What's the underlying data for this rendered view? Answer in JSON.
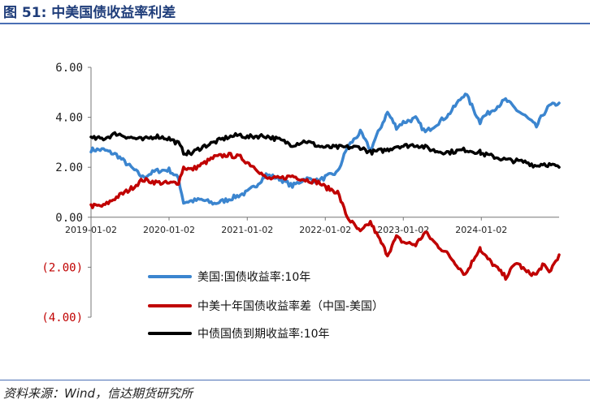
{
  "header": {
    "title": "图 51:  中美国债收益率利差"
  },
  "source": "资料来源：Wind，信达期货研究所",
  "chart_data": {
    "type": "line",
    "title": "中美国债收益率利差",
    "xlabel": "",
    "ylabel": "",
    "x_range": [
      "2019-01-02",
      "2024-12-31"
    ],
    "ylim": [
      -4,
      6
    ],
    "y_ticks": [
      6,
      4,
      2,
      0,
      -2,
      -4
    ],
    "y_tick_labels": [
      "6.00",
      "4.00",
      "2.00",
      "0.00",
      "(2.00)",
      "(4.00)"
    ],
    "x_ticks": [
      "2019-01-02",
      "2020-01-02",
      "2021-01-02",
      "2022-01-02",
      "2023-01-02",
      "2024-01-02"
    ],
    "grid": false,
    "legend_position": "bottom-center",
    "series": [
      {
        "name": "美国:国债收益率:10年",
        "color": "#3b85cf",
        "points": [
          [
            "2019-01-02",
            2.7
          ],
          [
            "2019-03-01",
            2.7
          ],
          [
            "2019-05-01",
            2.5
          ],
          [
            "2019-07-01",
            2.05
          ],
          [
            "2019-09-01",
            1.6
          ],
          [
            "2019-11-01",
            1.85
          ],
          [
            "2020-01-02",
            1.9
          ],
          [
            "2020-02-15",
            1.55
          ],
          [
            "2020-03-10",
            0.6
          ],
          [
            "2020-04-15",
            0.65
          ],
          [
            "2020-06-01",
            0.7
          ],
          [
            "2020-08-01",
            0.55
          ],
          [
            "2020-10-01",
            0.7
          ],
          [
            "2020-12-01",
            0.9
          ],
          [
            "2021-01-02",
            1.0
          ],
          [
            "2021-02-15",
            1.3
          ],
          [
            "2021-03-31",
            1.7
          ],
          [
            "2021-06-01",
            1.55
          ],
          [
            "2021-08-01",
            1.25
          ],
          [
            "2021-10-01",
            1.55
          ],
          [
            "2021-12-01",
            1.45
          ],
          [
            "2022-01-02",
            1.6
          ],
          [
            "2022-03-01",
            1.8
          ],
          [
            "2022-04-15",
            2.8
          ],
          [
            "2022-06-15",
            3.4
          ],
          [
            "2022-08-01",
            2.7
          ],
          [
            "2022-10-20",
            4.2
          ],
          [
            "2022-12-01",
            3.6
          ],
          [
            "2023-01-02",
            3.8
          ],
          [
            "2023-03-01",
            3.95
          ],
          [
            "2023-04-15",
            3.4
          ],
          [
            "2023-06-01",
            3.7
          ],
          [
            "2023-08-01",
            4.1
          ],
          [
            "2023-10-19",
            4.98
          ],
          [
            "2023-12-27",
            3.8
          ],
          [
            "2024-01-02",
            3.95
          ],
          [
            "2024-04-25",
            4.7
          ],
          [
            "2024-06-15",
            4.3
          ],
          [
            "2024-08-01",
            4.0
          ],
          [
            "2024-09-16",
            3.62
          ],
          [
            "2024-10-15",
            4.1
          ],
          [
            "2024-11-15",
            4.45
          ],
          [
            "2024-12-31",
            4.57
          ]
        ]
      },
      {
        "name": "中美十年国债收益率差（中国-美国）",
        "color": "#c00000",
        "points": [
          [
            "2019-01-02",
            0.45
          ],
          [
            "2019-03-01",
            0.45
          ],
          [
            "2019-05-01",
            0.8
          ],
          [
            "2019-07-01",
            1.1
          ],
          [
            "2019-09-01",
            1.5
          ],
          [
            "2019-11-01",
            1.4
          ],
          [
            "2020-01-02",
            1.35
          ],
          [
            "2020-02-15",
            1.4
          ],
          [
            "2020-03-10",
            2.0
          ],
          [
            "2020-04-15",
            1.9
          ],
          [
            "2020-06-01",
            2.1
          ],
          [
            "2020-08-01",
            2.4
          ],
          [
            "2020-10-01",
            2.5
          ],
          [
            "2020-12-01",
            2.4
          ],
          [
            "2021-01-02",
            2.2
          ],
          [
            "2021-02-15",
            1.95
          ],
          [
            "2021-03-31",
            1.55
          ],
          [
            "2021-06-01",
            1.55
          ],
          [
            "2021-08-01",
            1.65
          ],
          [
            "2021-10-01",
            1.5
          ],
          [
            "2021-12-01",
            1.4
          ],
          [
            "2022-01-02",
            1.2
          ],
          [
            "2022-03-01",
            1.0
          ],
          [
            "2022-04-15",
            0.0
          ],
          [
            "2022-06-15",
            -0.6
          ],
          [
            "2022-08-01",
            -0.2
          ],
          [
            "2022-10-20",
            -1.5
          ],
          [
            "2022-12-01",
            -0.8
          ],
          [
            "2023-01-02",
            -1.0
          ],
          [
            "2023-03-01",
            -1.1
          ],
          [
            "2023-04-15",
            -0.6
          ],
          [
            "2023-06-01",
            -1.05
          ],
          [
            "2023-08-01",
            -1.5
          ],
          [
            "2023-10-19",
            -2.3
          ],
          [
            "2023-12-27",
            -1.2
          ],
          [
            "2024-01-02",
            -1.4
          ],
          [
            "2024-04-25",
            -2.4
          ],
          [
            "2024-06-15",
            -1.8
          ],
          [
            "2024-08-01",
            -2.2
          ],
          [
            "2024-09-16",
            -2.3
          ],
          [
            "2024-10-15",
            -1.9
          ],
          [
            "2024-11-15",
            -2.2
          ],
          [
            "2024-12-31",
            -1.5
          ]
        ]
      },
      {
        "name": "中债国债到期收益率:10年",
        "color": "#000000",
        "points": [
          [
            "2019-01-02",
            3.15
          ],
          [
            "2019-03-01",
            3.15
          ],
          [
            "2019-05-01",
            3.35
          ],
          [
            "2019-07-01",
            3.2
          ],
          [
            "2019-09-01",
            3.1
          ],
          [
            "2019-11-01",
            3.25
          ],
          [
            "2020-01-02",
            3.15
          ],
          [
            "2020-02-15",
            2.95
          ],
          [
            "2020-03-10",
            2.6
          ],
          [
            "2020-04-15",
            2.55
          ],
          [
            "2020-06-01",
            2.8
          ],
          [
            "2020-08-01",
            3.0
          ],
          [
            "2020-10-01",
            3.2
          ],
          [
            "2020-12-01",
            3.3
          ],
          [
            "2021-01-02",
            3.2
          ],
          [
            "2021-02-15",
            3.25
          ],
          [
            "2021-03-31",
            3.25
          ],
          [
            "2021-06-01",
            3.1
          ],
          [
            "2021-08-01",
            2.9
          ],
          [
            "2021-10-01",
            3.05
          ],
          [
            "2021-12-01",
            2.85
          ],
          [
            "2022-01-02",
            2.8
          ],
          [
            "2022-03-01",
            2.8
          ],
          [
            "2022-04-15",
            2.8
          ],
          [
            "2022-06-15",
            2.8
          ],
          [
            "2022-08-01",
            2.6
          ],
          [
            "2022-10-20",
            2.7
          ],
          [
            "2022-12-01",
            2.85
          ],
          [
            "2023-01-02",
            2.85
          ],
          [
            "2023-03-01",
            2.9
          ],
          [
            "2023-04-15",
            2.8
          ],
          [
            "2023-06-01",
            2.65
          ],
          [
            "2023-08-01",
            2.6
          ],
          [
            "2023-10-19",
            2.7
          ],
          [
            "2023-12-27",
            2.6
          ],
          [
            "2024-01-02",
            2.55
          ],
          [
            "2024-04-25",
            2.3
          ],
          [
            "2024-06-15",
            2.25
          ],
          [
            "2024-08-01",
            2.2
          ],
          [
            "2024-09-16",
            2.05
          ],
          [
            "2024-10-15",
            2.15
          ],
          [
            "2024-11-15",
            2.1
          ],
          [
            "2024-12-31",
            2.0
          ]
        ]
      }
    ]
  }
}
